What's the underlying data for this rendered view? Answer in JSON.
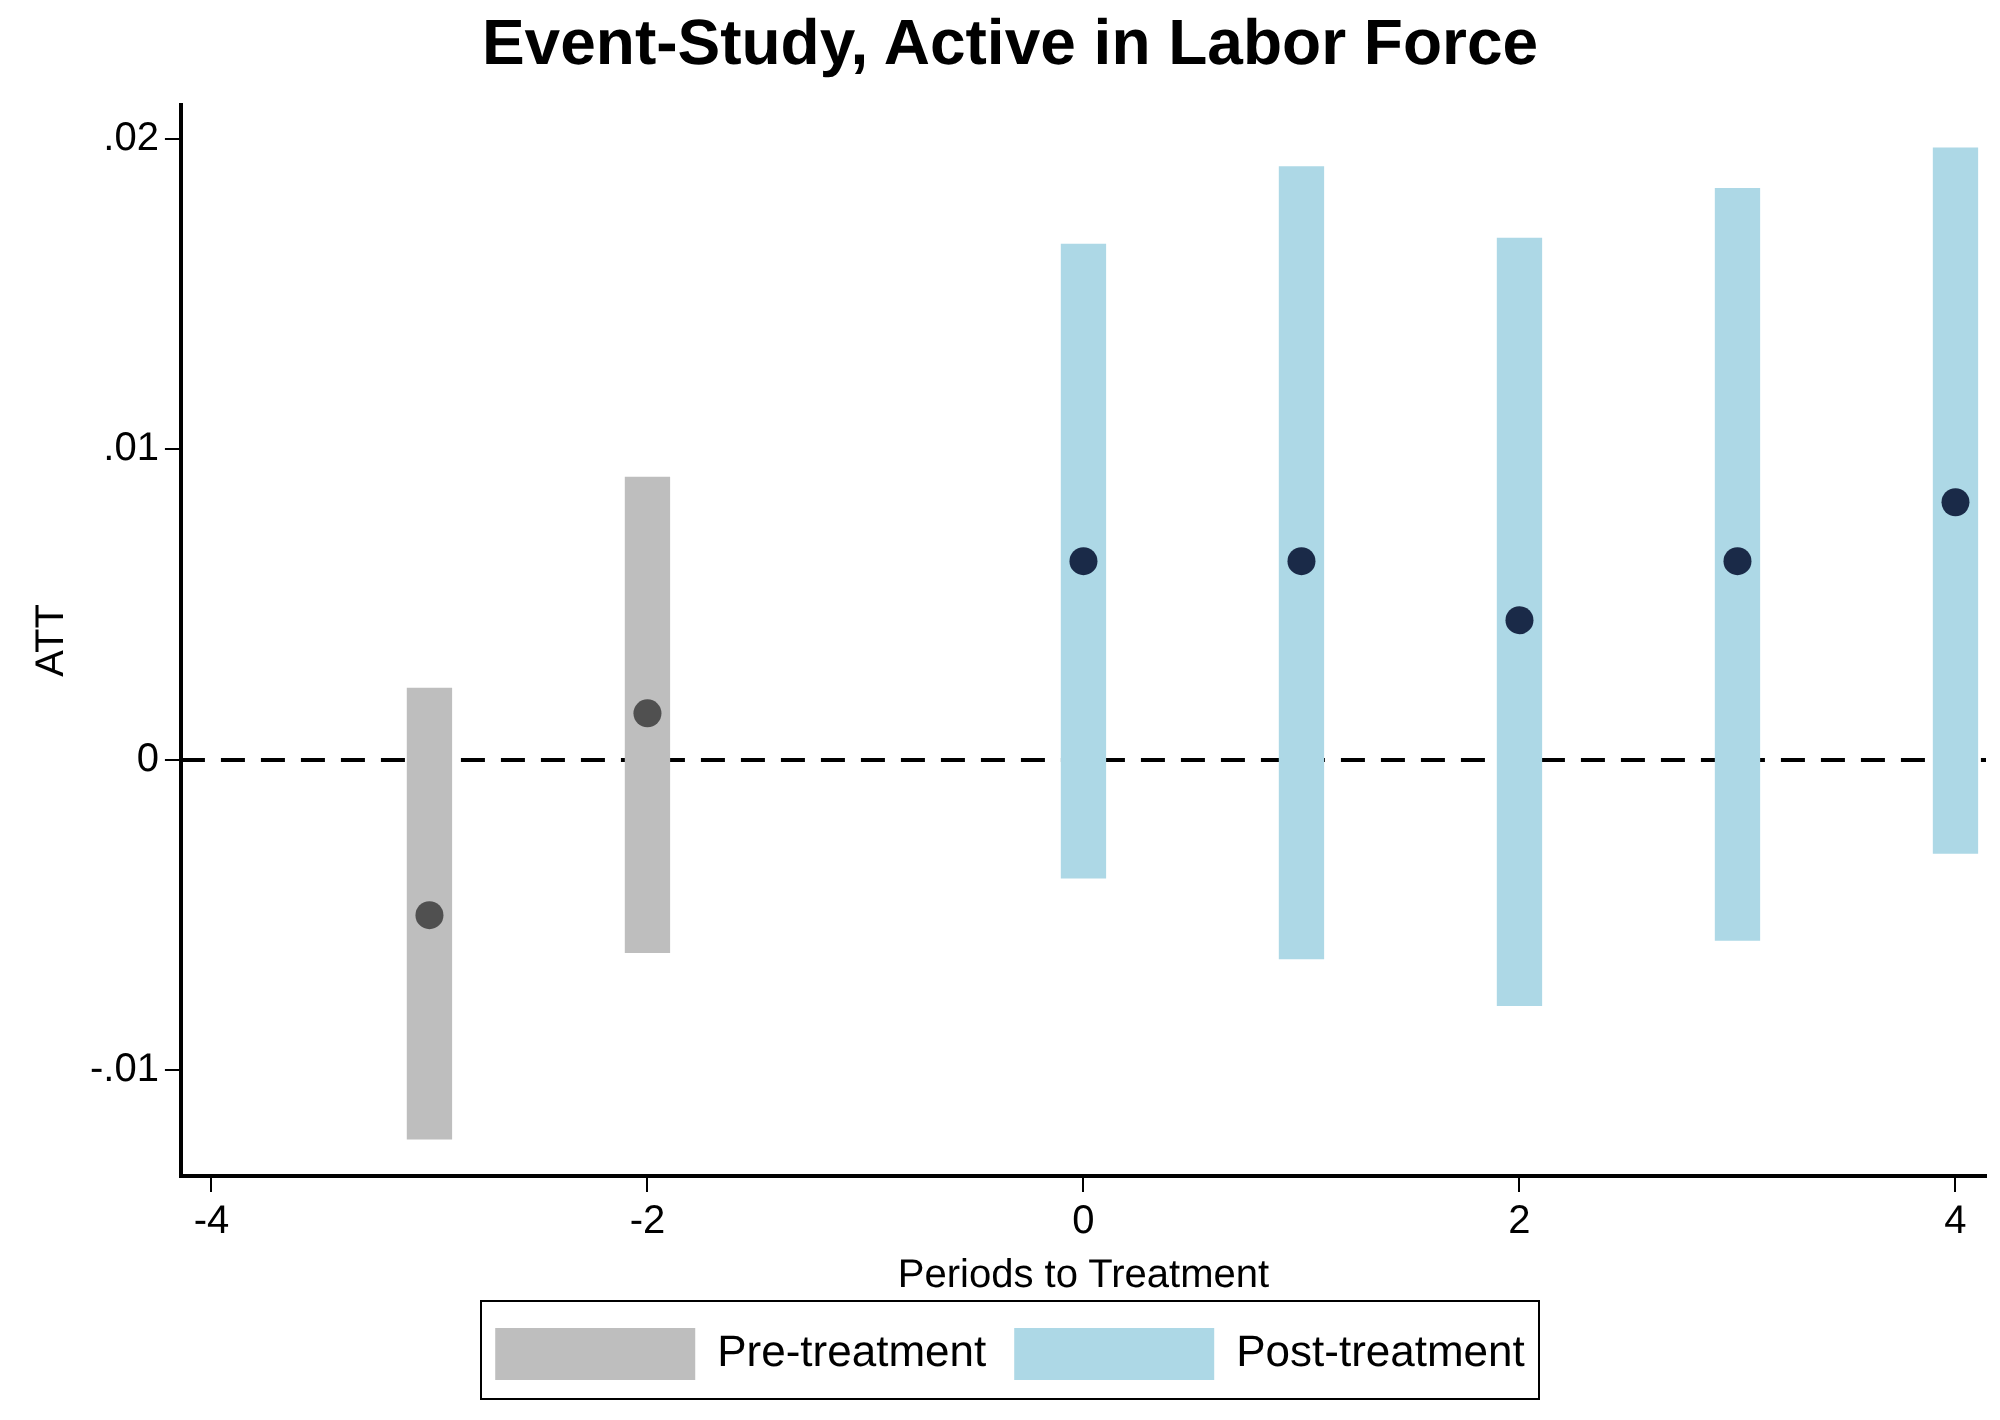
{
  "chart_data": {
    "type": "bar",
    "title": "Event-Study, Active in Labor Force",
    "xlabel": "Periods to Treatment",
    "ylabel": "ATT",
    "series": [
      {
        "name": "Pre-treatment",
        "color": "#bebebe",
        "x": [
          -3,
          -2
        ],
        "base": [
          -0.0122,
          -0.0062
        ],
        "values": [
          0.0145,
          0.0153
        ]
      },
      {
        "name": "Post-treatment",
        "color": "#add8e6",
        "x": [
          0,
          1,
          2,
          3,
          4
        ],
        "base": [
          -0.0038,
          -0.0064,
          -0.0079,
          -0.0058,
          -0.003
        ],
        "values": [
          0.0204,
          0.0255,
          0.0247,
          0.0242,
          0.0227
        ]
      },
      {
        "type": "scatter",
        "color": "#505050",
        "x": [
          -3,
          -2
        ],
        "values": [
          -0.005,
          0.0015
        ]
      },
      {
        "type": "scatter",
        "color": "#1a2a48",
        "x": [
          0,
          1,
          2,
          3,
          4
        ],
        "values": [
          0.0064,
          0.0064,
          0.0045,
          0.0064,
          0.0083
        ]
      }
    ],
    "xlim": [
      -4.14,
      4.14
    ],
    "xticks": [
      -4,
      -2,
      0,
      2,
      4
    ],
    "ylim": [
      -0.0134,
      0.0211
    ],
    "yticks": [
      {
        "value": -0.01,
        "label": "-.01"
      },
      {
        "value": 0,
        "label": "0"
      },
      {
        "value": 0.01,
        "label": ".01"
      },
      {
        "value": 0.02,
        "label": ".02"
      }
    ],
    "ref_lines": [
      {
        "axis": "y",
        "value": 0,
        "color": "#000000",
        "line_style": "dashed"
      }
    ],
    "marker": "circle",
    "grid": false,
    "legend": "bottom"
  }
}
